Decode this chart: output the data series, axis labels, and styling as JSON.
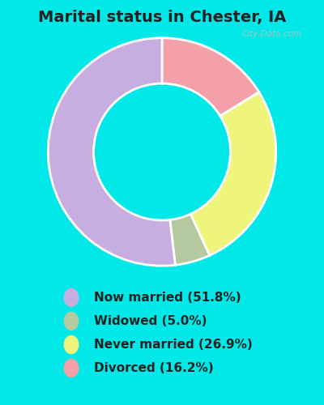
{
  "title": "Marital status in Chester, IA",
  "slices": [
    51.8,
    5.0,
    26.9,
    16.2
  ],
  "labels": [
    "Now married (51.8%)",
    "Widowed (5.0%)",
    "Never married (26.9%)",
    "Divorced (16.2%)"
  ],
  "colors": [
    "#c8aee0",
    "#b5c9a0",
    "#eef57a",
    "#f4a0a8"
  ],
  "legend_colors": [
    "#c8aee0",
    "#b5c9a0",
    "#eef57a",
    "#f4a0a8"
  ],
  "bg_color_outer": "#00e8e8",
  "bg_color_chart": "#d0ead8",
  "title_fontsize": 14,
  "legend_fontsize": 11,
  "watermark": "City-Data.com"
}
